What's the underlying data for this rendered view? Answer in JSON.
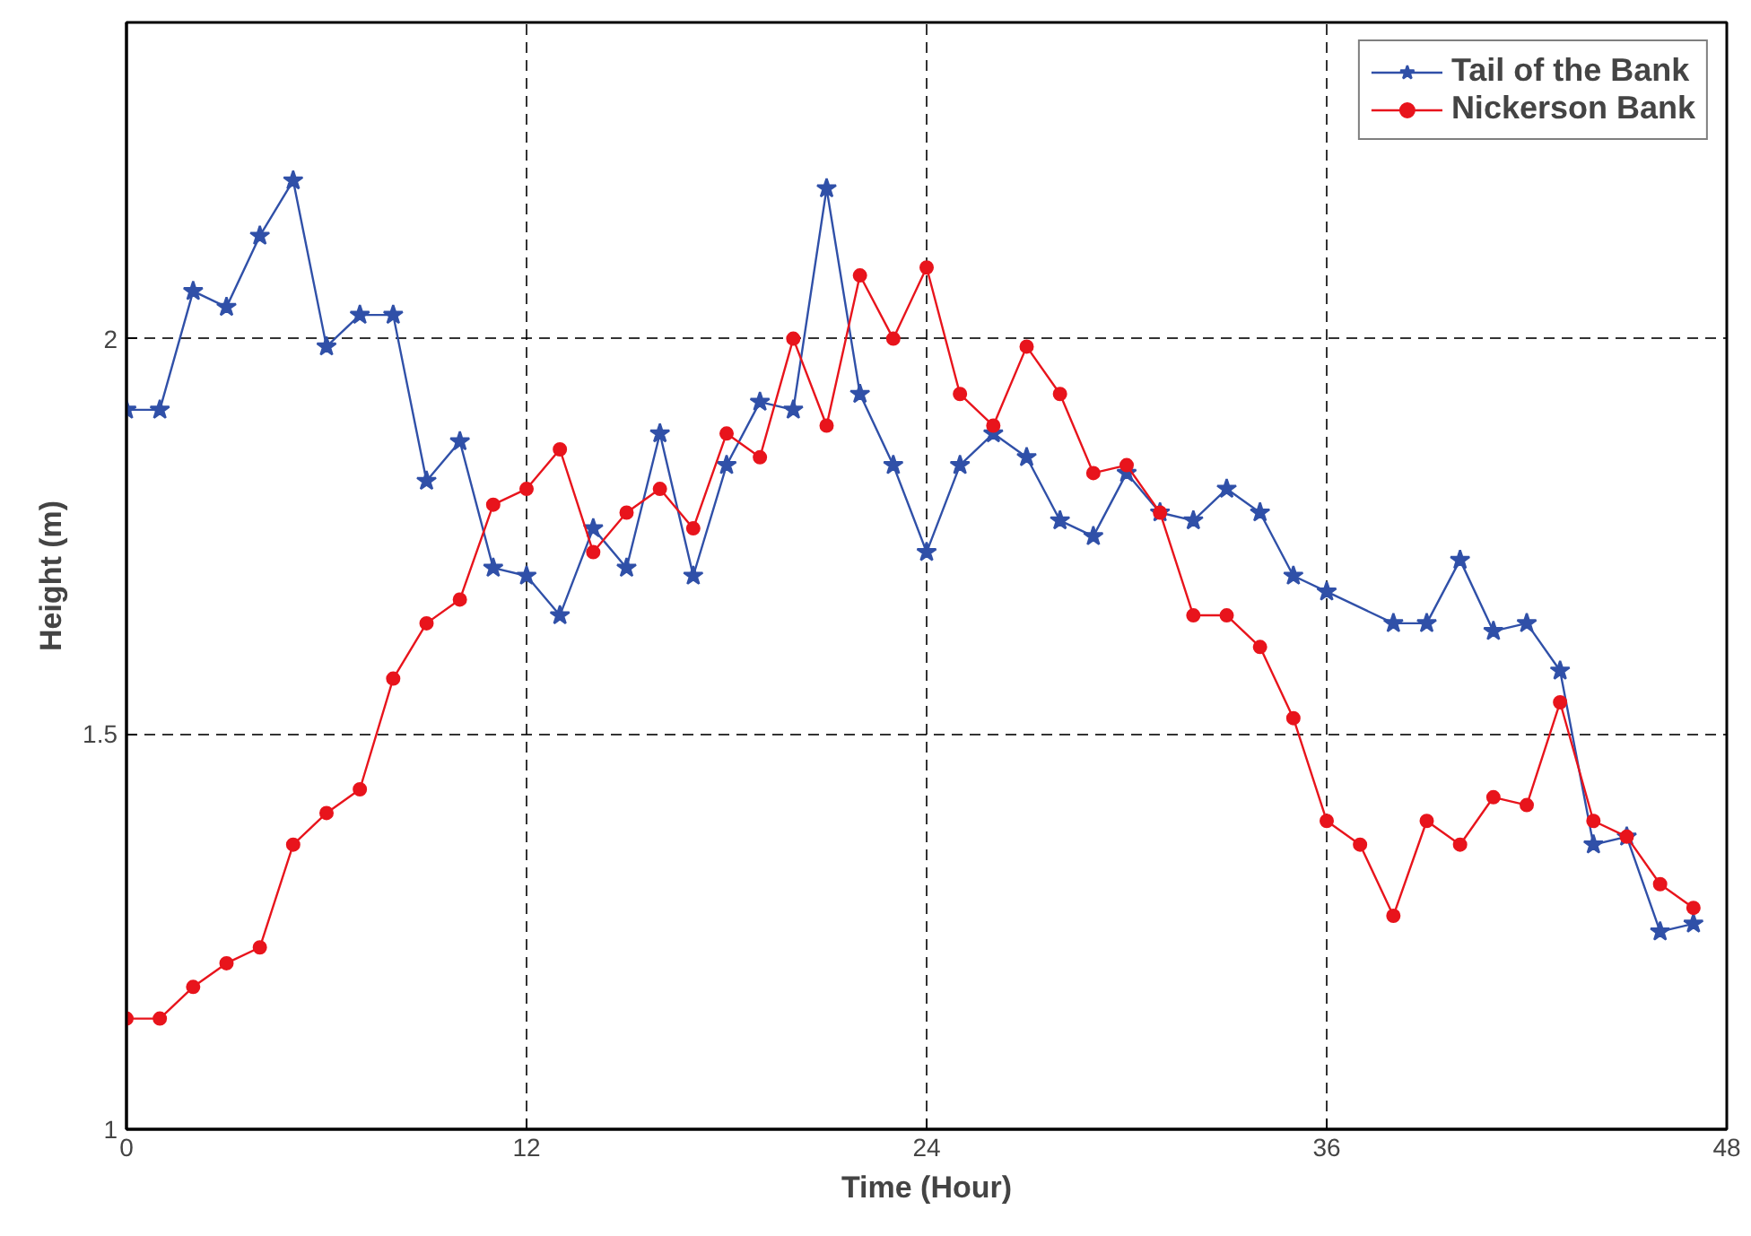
{
  "chart_data": {
    "type": "line",
    "xlabel": "Time (Hour)",
    "ylabel": "Height (m)",
    "xlim": [
      0,
      48
    ],
    "ylim": [
      1,
      2.4
    ],
    "xticks": [
      0,
      12,
      24,
      36,
      48
    ],
    "yticks": [
      1,
      1.5,
      2
    ],
    "grid": true,
    "legend": "top right",
    "line_style": "solid",
    "series": [
      {
        "name": "Tail of the Bank",
        "color": "#3050a8",
        "marker": "star",
        "x": [
          0,
          1,
          2,
          3,
          4,
          5,
          6,
          7,
          8,
          9,
          10,
          11,
          12,
          13,
          14,
          15,
          16,
          17,
          18,
          19,
          20,
          21,
          22,
          23,
          24,
          25,
          26,
          27,
          28,
          29,
          30,
          31,
          32,
          33,
          34,
          35,
          36,
          38,
          39,
          40,
          41,
          42,
          43,
          44,
          45,
          46,
          47
        ],
        "values": [
          1.91,
          1.91,
          2.06,
          2.04,
          2.13,
          2.2,
          1.99,
          2.03,
          2.03,
          1.82,
          1.87,
          1.71,
          1.7,
          1.65,
          1.76,
          1.71,
          1.88,
          1.7,
          1.84,
          1.92,
          1.91,
          2.19,
          1.93,
          1.84,
          1.73,
          1.84,
          1.88,
          1.85,
          1.77,
          1.75,
          1.83,
          1.78,
          1.77,
          1.81,
          1.78,
          1.7,
          1.68,
          1.64,
          1.64,
          1.72,
          1.63,
          1.64,
          1.58,
          1.36,
          1.37,
          1.25,
          1.26
        ]
      },
      {
        "name": "Nickerson Bank",
        "color": "#e8141c",
        "marker": "circle",
        "x": [
          0,
          1,
          2,
          3,
          4,
          5,
          6,
          7,
          8,
          9,
          10,
          11,
          12,
          13,
          14,
          15,
          16,
          17,
          18,
          19,
          20,
          21,
          22,
          23,
          24,
          25,
          26,
          27,
          28,
          29,
          30,
          31,
          32,
          33,
          34,
          35,
          36,
          37,
          38,
          39,
          40,
          41,
          42,
          43,
          44,
          45,
          46,
          47
        ],
        "values": [
          1.14,
          1.14,
          1.18,
          1.21,
          1.23,
          1.36,
          1.4,
          1.43,
          1.57,
          1.64,
          1.67,
          1.79,
          1.81,
          1.86,
          1.73,
          1.78,
          1.81,
          1.76,
          1.88,
          1.85,
          2.0,
          1.89,
          2.08,
          2.0,
          2.09,
          1.93,
          1.89,
          1.99,
          1.93,
          1.83,
          1.84,
          1.78,
          1.65,
          1.65,
          1.61,
          1.52,
          1.39,
          1.36,
          1.27,
          1.39,
          1.36,
          1.42,
          1.41,
          1.54,
          1.39,
          1.37,
          1.31,
          1.28
        ]
      }
    ]
  }
}
